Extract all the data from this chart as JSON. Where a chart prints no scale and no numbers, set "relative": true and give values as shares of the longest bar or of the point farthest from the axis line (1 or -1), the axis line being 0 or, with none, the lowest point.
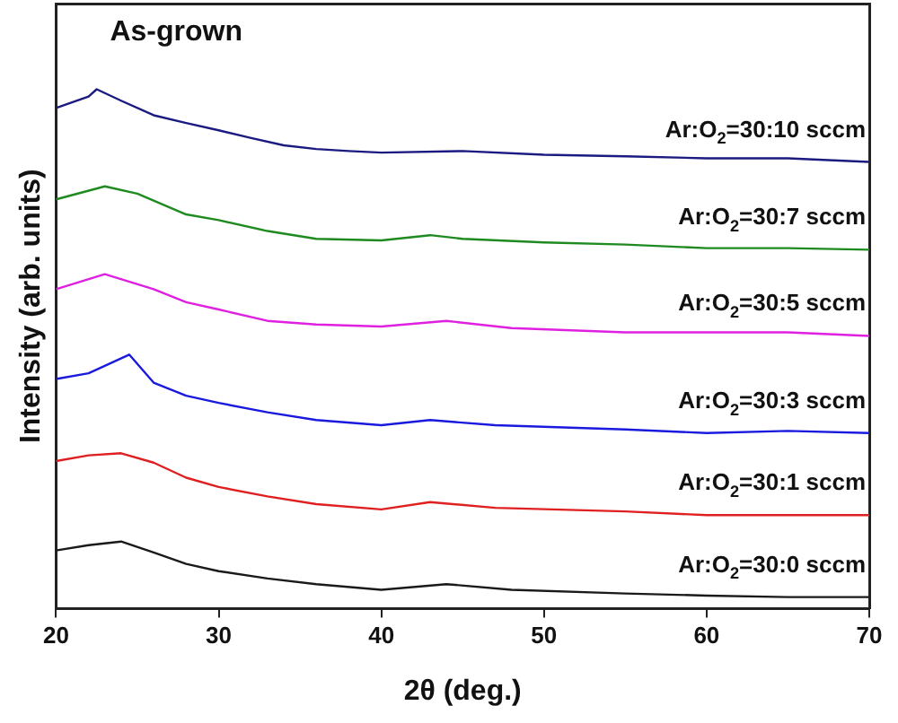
{
  "chart_data": {
    "type": "line",
    "title": "As-grown",
    "xlabel": "2θ (deg.)",
    "ylabel": "Intensity (arb. units)",
    "relative": true,
    "xlim": [
      20,
      70
    ],
    "xticks": [
      20,
      30,
      40,
      50,
      60,
      70
    ],
    "grid": false,
    "legend": false,
    "marker": "none",
    "line_style": "solid",
    "series": [
      {
        "name": "Ar:O$_{2}$=30:10 sccm",
        "color": "#1a1a80",
        "x": [
          20,
          22,
          22.5,
          24,
          26,
          28,
          30,
          32,
          34,
          36,
          38,
          40,
          45,
          50,
          55,
          60,
          65,
          70
        ],
        "values": [
          0.964,
          0.986,
          1.0,
          0.978,
          0.95,
          0.935,
          0.921,
          0.906,
          0.892,
          0.885,
          0.881,
          0.878,
          0.881,
          0.874,
          0.871,
          0.867,
          0.867,
          0.86
        ]
      },
      {
        "name": "Ar:O$_{2}$=30:7 sccm",
        "color": "#1f8a1f",
        "x": [
          20,
          23,
          25,
          28,
          30,
          33,
          36,
          40,
          43,
          45,
          50,
          55,
          60,
          65,
          70
        ],
        "values": [
          0.788,
          0.813,
          0.799,
          0.759,
          0.748,
          0.727,
          0.712,
          0.709,
          0.719,
          0.712,
          0.705,
          0.701,
          0.694,
          0.694,
          0.691
        ]
      },
      {
        "name": "Ar:O$_{2}$=30:5 sccm",
        "color": "#e020e0",
        "x": [
          20,
          23,
          26,
          28,
          30,
          33,
          36,
          40,
          44,
          48,
          55,
          60,
          65,
          70
        ],
        "values": [
          0.615,
          0.644,
          0.615,
          0.59,
          0.576,
          0.554,
          0.547,
          0.543,
          0.554,
          0.54,
          0.532,
          0.532,
          0.532,
          0.525
        ]
      },
      {
        "name": "Ar:O$_{2}$=30:3 sccm",
        "color": "#1a1adf",
        "x": [
          20,
          22,
          24.5,
          26,
          28,
          30,
          33,
          36,
          40,
          43,
          47,
          55,
          60,
          65,
          70
        ],
        "values": [
          0.442,
          0.453,
          0.489,
          0.435,
          0.41,
          0.396,
          0.378,
          0.363,
          0.353,
          0.363,
          0.353,
          0.345,
          0.338,
          0.342,
          0.338
        ]
      },
      {
        "name": "Ar:O$_{2}$=30:1 sccm",
        "color": "#e02020",
        "x": [
          20,
          22,
          24,
          26,
          28,
          30,
          33,
          36,
          40,
          43,
          47,
          55,
          60,
          65,
          70
        ],
        "values": [
          0.284,
          0.295,
          0.299,
          0.281,
          0.252,
          0.234,
          0.216,
          0.201,
          0.191,
          0.205,
          0.194,
          0.187,
          0.18,
          0.18,
          0.18
        ]
      },
      {
        "name": "Ar:O$_{2}$=30:0 sccm",
        "color": "#1a1a1a",
        "x": [
          20,
          22,
          24,
          26,
          28,
          30,
          33,
          36,
          40,
          44,
          48,
          55,
          60,
          65,
          70
        ],
        "values": [
          0.112,
          0.122,
          0.129,
          0.108,
          0.086,
          0.072,
          0.058,
          0.047,
          0.036,
          0.047,
          0.036,
          0.029,
          0.025,
          0.022,
          0.022
        ]
      }
    ]
  }
}
